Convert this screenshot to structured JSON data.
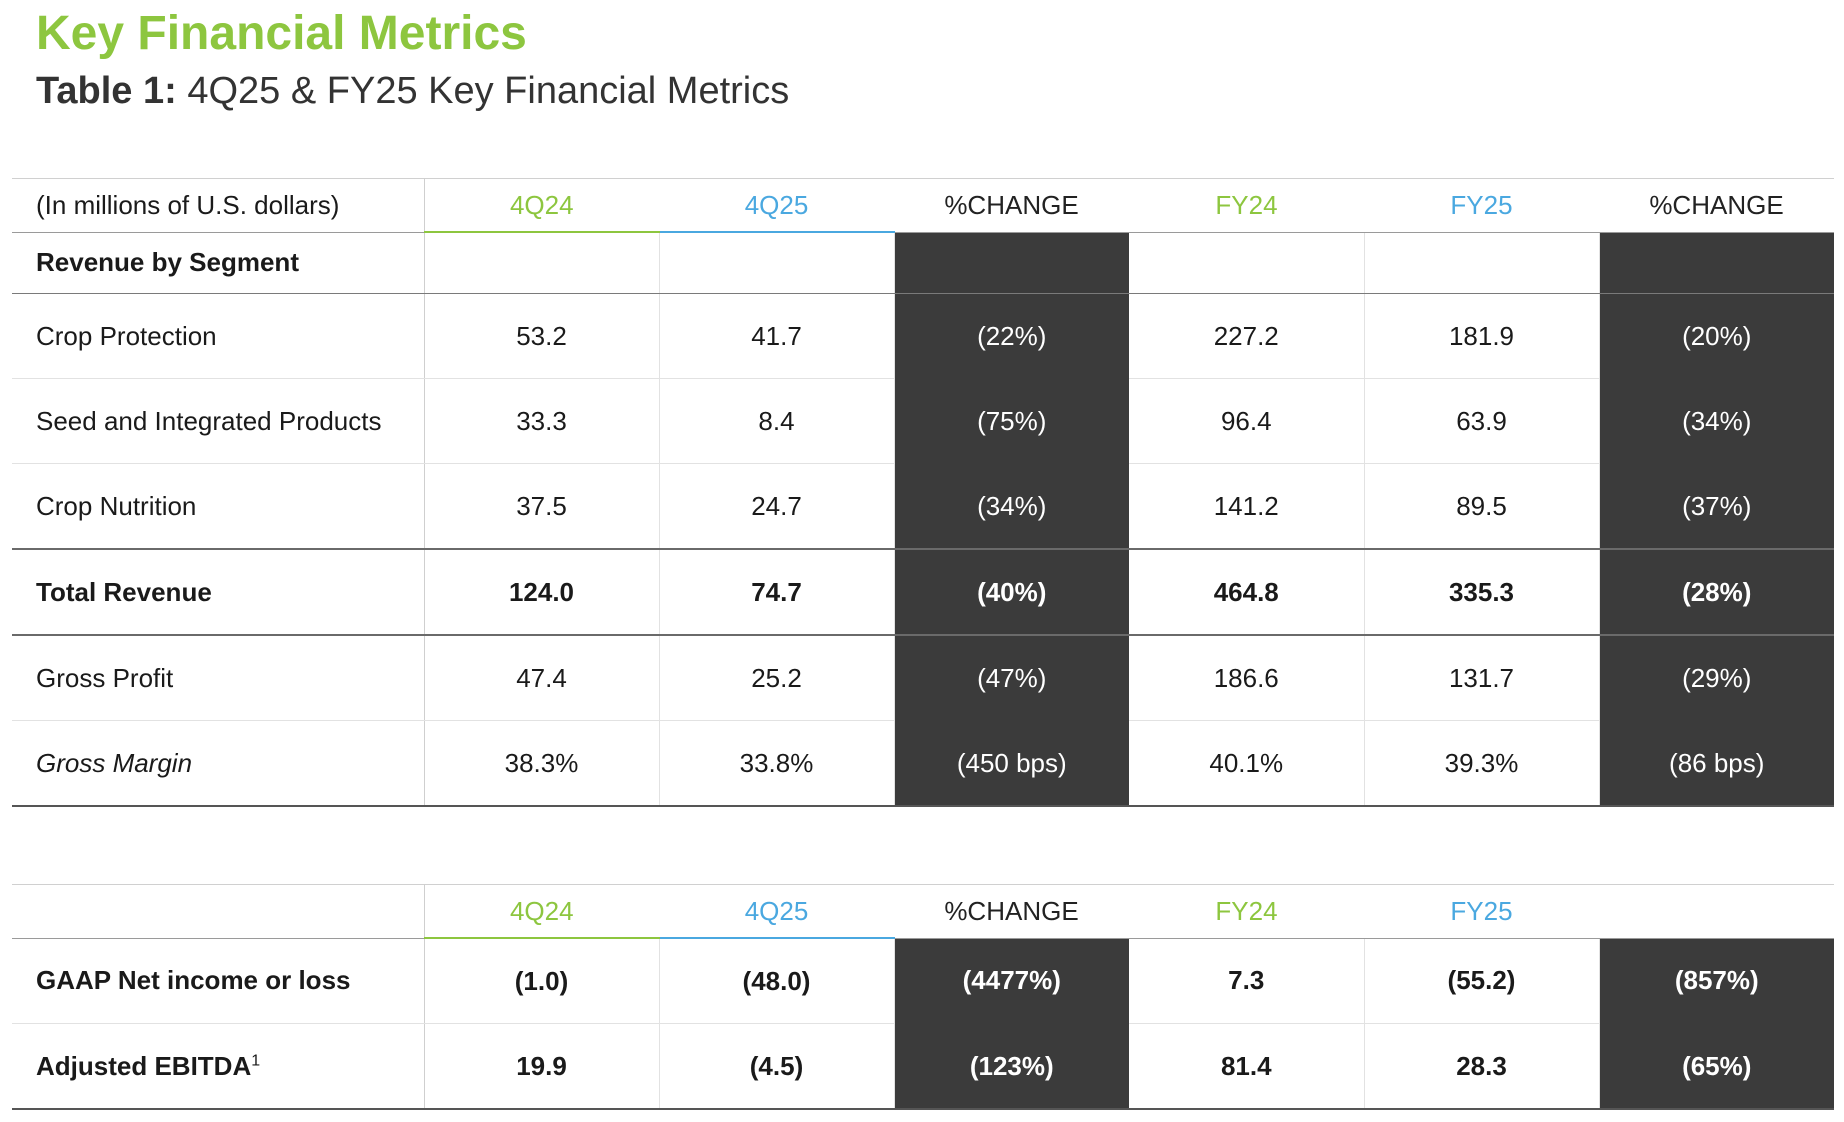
{
  "page": {
    "title": "Key Financial Metrics",
    "table_title_lead": "Table 1:",
    "table_title_rest": " 4Q25 & FY25 Key Financial Metrics"
  },
  "colors": {
    "green": "#8dc63f",
    "blue": "#4aa8e0",
    "dark_cell": "#3b3b3b"
  },
  "table1": {
    "unit_label": "(In millions of U.S. dollars)",
    "headers": [
      "4Q24",
      "4Q25",
      "%CHANGE",
      "FY24",
      "FY25",
      "%CHANGE"
    ],
    "segment_label": "Revenue by Segment",
    "rows": [
      {
        "label": "Crop Protection",
        "values": [
          "53.2",
          "41.7",
          "(22%)",
          "227.2",
          "181.9",
          "(20%)"
        ]
      },
      {
        "label": "Seed and Integrated Products",
        "values": [
          "33.3",
          "8.4",
          "(75%)",
          "96.4",
          "63.9",
          "(34%)"
        ]
      },
      {
        "label": "Crop Nutrition",
        "values": [
          "37.5",
          "24.7",
          "(34%)",
          "141.2",
          "89.5",
          "(37%)"
        ]
      },
      {
        "label": "Total Revenue",
        "values": [
          "124.0",
          "74.7",
          "(40%)",
          "464.8",
          "335.3",
          "(28%)"
        ]
      },
      {
        "label": "Gross Profit",
        "values": [
          "47.4",
          "25.2",
          "(47%)",
          "186.6",
          "131.7",
          "(29%)"
        ]
      },
      {
        "label": "Gross Margin",
        "values": [
          "38.3%",
          "33.8%",
          "(450 bps)",
          "40.1%",
          "39.3%",
          "(86 bps)"
        ]
      }
    ]
  },
  "table2": {
    "headers": [
      "4Q24",
      "4Q25",
      "%CHANGE",
      "FY24",
      "FY25",
      ""
    ],
    "rows": [
      {
        "label": "GAAP Net income or loss",
        "values": [
          "(1.0)",
          "(48.0)",
          "(4477%)",
          "7.3",
          "(55.2)",
          "(857%)"
        ]
      },
      {
        "label": "Adjusted EBITDA",
        "label_sup": "1",
        "values": [
          "19.9",
          "(4.5)",
          "(123%)",
          "81.4",
          "28.3",
          "(65%)"
        ]
      }
    ]
  }
}
